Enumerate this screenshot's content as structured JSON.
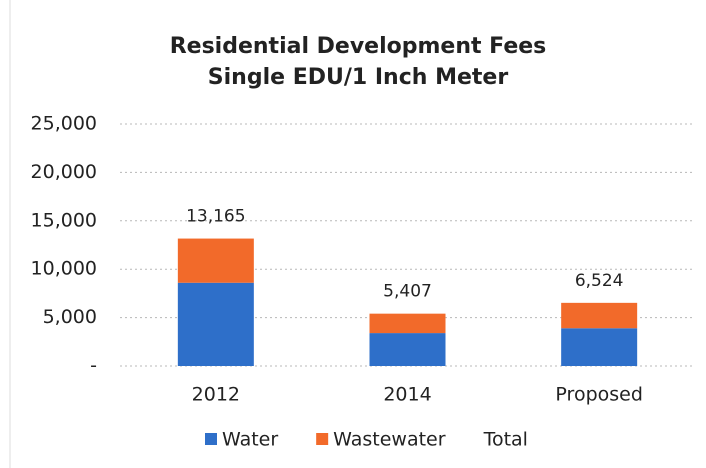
{
  "chart_data": {
    "type": "bar",
    "stacked": true,
    "title": "Residential Development Fees",
    "subtitle": "Single EDU/1 Inch Meter",
    "categories": [
      "2012",
      "2014",
      "Proposed"
    ],
    "series": [
      {
        "name": "Water",
        "color": "#2e6fc9",
        "values": [
          8600,
          3400,
          3900
        ]
      },
      {
        "name": "Wastewater",
        "color": "#f26a2a",
        "values": [
          4565,
          2007,
          2624
        ]
      },
      {
        "name": "Total",
        "color": null,
        "values": [
          13165,
          5407,
          6524
        ],
        "value_labels": [
          "13,165",
          "5,407",
          "6,524"
        ]
      }
    ],
    "ylim": [
      0,
      25000
    ],
    "yticks": [
      {
        "value": 0,
        "label": "-"
      },
      {
        "value": 5000,
        "label": "5,000"
      },
      {
        "value": 10000,
        "label": "10,000"
      },
      {
        "value": 15000,
        "label": "15,000"
      },
      {
        "value": 20000,
        "label": "20,000"
      },
      {
        "value": 25000,
        "label": "25,000"
      }
    ],
    "grid": true,
    "legend": "bottom"
  }
}
